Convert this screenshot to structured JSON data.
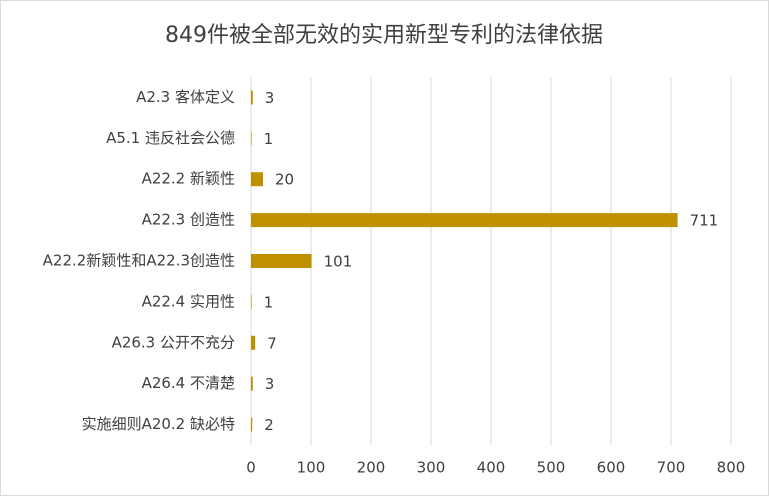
{
  "chart_data": {
    "type": "barh",
    "title": "849件被全部无效的实用新型专利的法律依据",
    "categories": [
      "A2.3 客体定义",
      "A5.1 违反社会公德",
      "A22.2 新颖性",
      "A22.3 创造性",
      "A22.2新颖性和A22.3创造性",
      "A22.4 实用性",
      "A26.3 公开不充分",
      "A26.4 不清楚",
      "实施细则A20.2 缺必特"
    ],
    "values": [
      3,
      1,
      20,
      711,
      101,
      1,
      7,
      3,
      2
    ],
    "color": "#bf9000",
    "xlim": [
      0,
      800
    ],
    "xticks": [
      0,
      100,
      200,
      300,
      400,
      500,
      600,
      700,
      800
    ],
    "grid": true
  }
}
